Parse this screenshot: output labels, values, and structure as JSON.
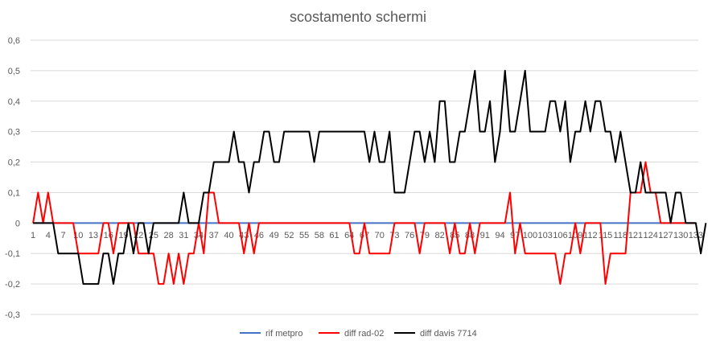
{
  "chart_data": {
    "type": "line",
    "title": "scostamento schermi",
    "xlabel": "",
    "ylabel": "",
    "ylim": [
      -0.3,
      0.6
    ],
    "ytick_values": [
      -0.3,
      -0.2,
      -0.1,
      0,
      0.1,
      0.2,
      0.3,
      0.4,
      0.5,
      0.6
    ],
    "ytick_labels": [
      "-0,3",
      "-0,2",
      "-0,1",
      "0",
      "0,1",
      "0,2",
      "0,3",
      "0,4",
      "0,5",
      "0,6"
    ],
    "x_count": 133,
    "xtick_labels": [
      "1",
      "4",
      "7",
      "10",
      "13",
      "16",
      "19",
      "22",
      "25",
      "28",
      "31",
      "34",
      "37",
      "40",
      "43",
      "46",
      "49",
      "52",
      "55",
      "58",
      "61",
      "64",
      "67",
      "70",
      "73",
      "76",
      "79",
      "82",
      "85",
      "88",
      "91",
      "94",
      "97",
      "100",
      "103",
      "106",
      "109",
      "112",
      "115",
      "118",
      "121",
      "124",
      "127",
      "130",
      "133"
    ],
    "grid": true,
    "legend_position": "bottom",
    "series": [
      {
        "name": "rif metpro",
        "color": "#4472C4",
        "values": [
          0,
          0,
          0,
          0,
          0,
          0,
          0,
          0,
          0,
          0,
          0,
          0,
          0,
          0,
          0,
          0,
          0,
          0,
          0,
          0,
          0,
          0,
          0,
          0,
          0,
          0,
          0,
          0,
          0,
          0,
          0,
          0,
          0,
          0,
          0,
          0,
          0,
          0,
          0,
          0,
          0,
          0,
          0,
          0,
          0,
          0,
          0,
          0,
          0,
          0,
          0,
          0,
          0,
          0,
          0,
          0,
          0,
          0,
          0,
          0,
          0,
          0,
          0,
          0,
          0,
          0,
          0,
          0,
          0,
          0,
          0,
          0,
          0,
          0,
          0,
          0,
          0,
          0,
          0,
          0,
          0,
          0,
          0,
          0,
          0,
          0,
          0,
          0,
          0,
          0,
          0,
          0,
          0,
          0,
          0,
          0,
          0,
          0,
          0,
          0,
          0,
          0,
          0,
          0,
          0,
          0,
          0,
          0,
          0,
          0,
          0,
          0,
          0,
          0,
          0,
          0,
          0,
          0,
          0,
          0,
          0,
          0,
          0,
          0,
          0,
          0,
          0,
          0,
          0,
          0,
          0,
          0,
          0
        ]
      },
      {
        "name": "diff rad-02",
        "color": "#FF0000",
        "values": [
          0,
          0.1,
          0,
          0.1,
          0,
          0,
          0,
          0,
          0,
          -0.1,
          -0.1,
          -0.1,
          -0.1,
          -0.1,
          0,
          0,
          -0.1,
          0,
          0,
          0,
          0,
          -0.1,
          -0.1,
          -0.1,
          -0.1,
          -0.2,
          -0.2,
          -0.1,
          -0.2,
          -0.1,
          -0.2,
          -0.1,
          -0.1,
          0,
          -0.1,
          0.1,
          0.1,
          0,
          0,
          0,
          0,
          0,
          -0.1,
          0,
          -0.1,
          0,
          0,
          0,
          0,
          0,
          0,
          0,
          0,
          0,
          0,
          0,
          0,
          0,
          0,
          0,
          0,
          0,
          0,
          0,
          -0.1,
          -0.1,
          0,
          -0.1,
          -0.1,
          -0.1,
          -0.1,
          -0.1,
          0,
          0,
          0,
          0,
          0,
          -0.1,
          0,
          0,
          0,
          0,
          0,
          -0.1,
          0,
          -0.1,
          -0.1,
          0,
          -0.1,
          0,
          0,
          0,
          0,
          0,
          0,
          0.1,
          -0.1,
          0,
          -0.1,
          -0.1,
          -0.1,
          -0.1,
          -0.1,
          -0.1,
          -0.1,
          -0.2,
          -0.1,
          -0.1,
          0,
          -0.1,
          0,
          0,
          0,
          0,
          -0.2,
          -0.1,
          -0.1,
          -0.1,
          -0.1,
          0.1,
          0.1,
          0.1,
          0.2,
          0.1,
          0.1,
          0,
          0,
          0,
          0,
          0,
          0,
          0,
          0
        ]
      },
      {
        "name": "diff davis 7714",
        "color": "#000000",
        "values": [
          0,
          0,
          0,
          0,
          0,
          -0.1,
          -0.1,
          -0.1,
          -0.1,
          -0.1,
          -0.2,
          -0.2,
          -0.2,
          -0.2,
          -0.1,
          -0.1,
          -0.2,
          -0.1,
          -0.1,
          0,
          -0.1,
          0,
          0,
          -0.1,
          0,
          0,
          0,
          0,
          0,
          0,
          0.1,
          0,
          0,
          0,
          0.1,
          0.1,
          0.2,
          0.2,
          0.2,
          0.2,
          0.3,
          0.2,
          0.2,
          0.1,
          0.2,
          0.2,
          0.3,
          0.3,
          0.2,
          0.2,
          0.3,
          0.3,
          0.3,
          0.3,
          0.3,
          0.3,
          0.2,
          0.3,
          0.3,
          0.3,
          0.3,
          0.3,
          0.3,
          0.3,
          0.3,
          0.3,
          0.3,
          0.2,
          0.3,
          0.2,
          0.2,
          0.3,
          0.1,
          0.1,
          0.1,
          0.2,
          0.3,
          0.3,
          0.2,
          0.3,
          0.2,
          0.4,
          0.4,
          0.2,
          0.2,
          0.3,
          0.3,
          0.4,
          0.5,
          0.3,
          0.3,
          0.4,
          0.2,
          0.3,
          0.5,
          0.3,
          0.3,
          0.4,
          0.5,
          0.3,
          0.3,
          0.3,
          0.3,
          0.4,
          0.4,
          0.3,
          0.4,
          0.2,
          0.3,
          0.3,
          0.4,
          0.3,
          0.4,
          0.4,
          0.3,
          0.3,
          0.2,
          0.3,
          0.2,
          0.1,
          0.1,
          0.2,
          0.1,
          0.1,
          0.1,
          0.1,
          0.1,
          0,
          0.1,
          0.1,
          0,
          0,
          0,
          -0.1,
          0
        ]
      }
    ]
  }
}
